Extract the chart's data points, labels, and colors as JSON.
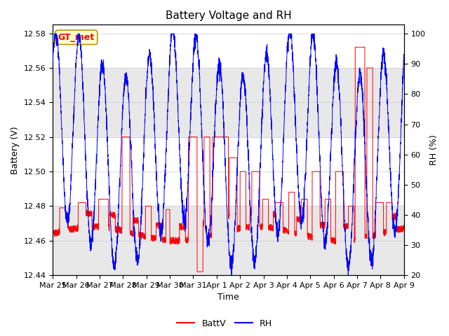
{
  "title": "Battery Voltage and RH",
  "xlabel": "Time",
  "ylabel_left": "Battery (V)",
  "ylabel_right": "RH (%)",
  "ylim_left": [
    12.44,
    12.585
  ],
  "ylim_right": [
    20,
    103
  ],
  "yticks_left": [
    12.44,
    12.46,
    12.48,
    12.5,
    12.52,
    12.54,
    12.56,
    12.58
  ],
  "yticks_right": [
    20,
    30,
    40,
    50,
    60,
    70,
    80,
    90,
    100
  ],
  "xtick_labels": [
    "Mar 25",
    "Mar 26",
    "Mar 27",
    "Mar 28",
    "Mar 29",
    "Mar 30",
    "Mar 31",
    "Apr 1",
    "Apr 2",
    "Apr 3",
    "Apr 4",
    "Apr 5",
    "Apr 6",
    "Apr 7",
    "Apr 8",
    "Apr 9"
  ],
  "xtick_positions": [
    0,
    24,
    48,
    72,
    96,
    120,
    144,
    168,
    192,
    216,
    240,
    264,
    288,
    312,
    336,
    360
  ],
  "legend_labels": [
    "BattV",
    "RH"
  ],
  "legend_colors": [
    "red",
    "blue"
  ],
  "batt_color": "red",
  "rh_color": "blue",
  "annotation_text": "GT_met",
  "annotation_bg": "#ffffcc",
  "annotation_border": "#b8960c",
  "background_shade1": [
    12.52,
    12.56
  ],
  "background_shade2": [
    12.44,
    12.48
  ],
  "shade_color": "#e8e8e8",
  "grid_color": "#cccccc",
  "title_fontsize": 11,
  "axis_fontsize": 9,
  "tick_fontsize": 8,
  "annot_fontsize": 9
}
